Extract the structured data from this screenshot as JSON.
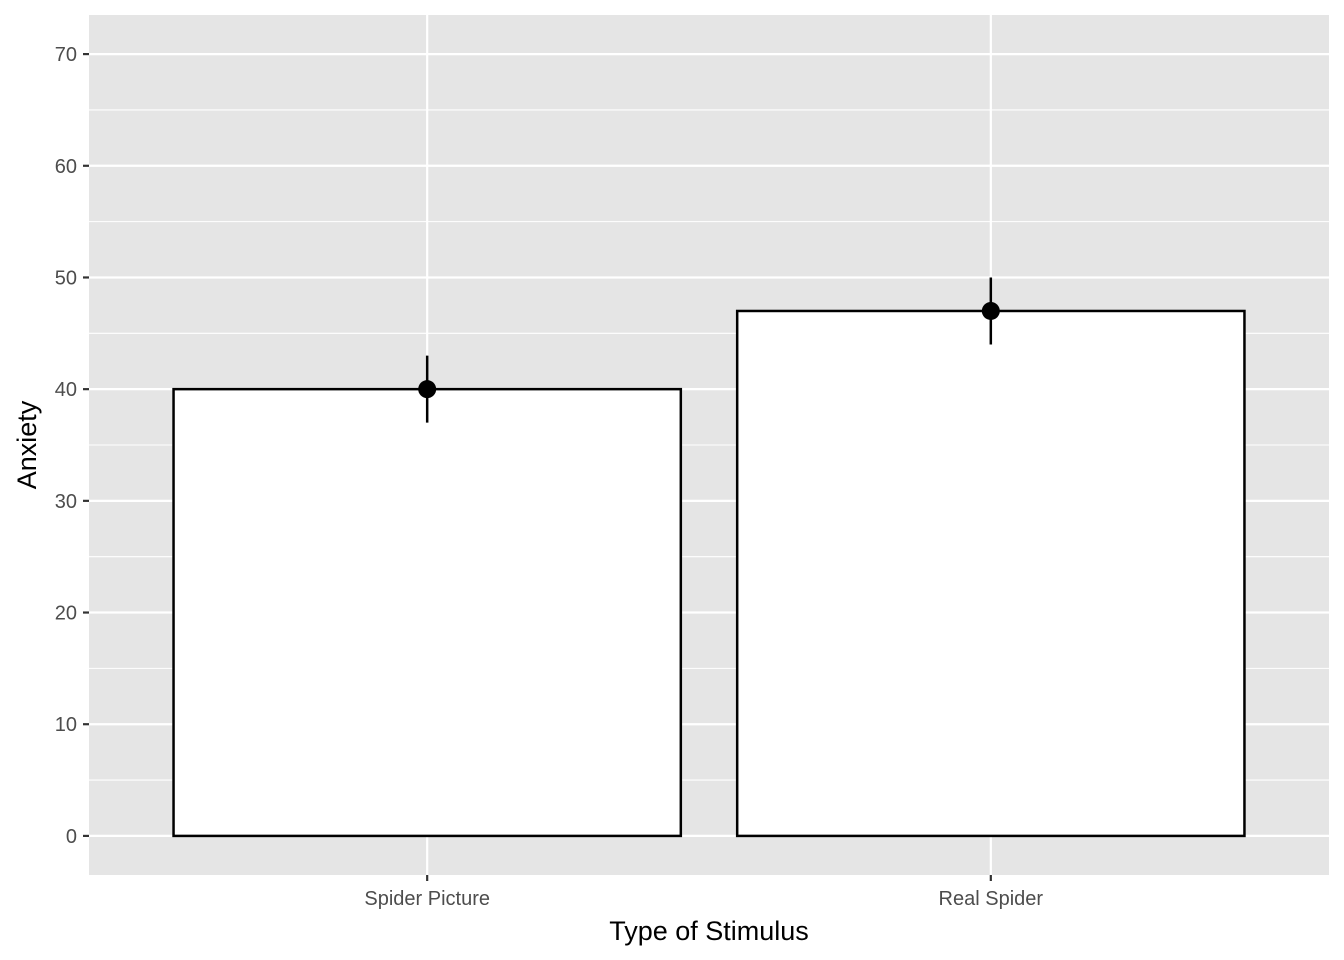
{
  "chart_data": {
    "type": "bar",
    "title": "",
    "xlabel": "Type of Stimulus",
    "ylabel": "Anxiety",
    "categories": [
      "Spider Picture",
      "Real Spider"
    ],
    "values": [
      40,
      47
    ],
    "error_bars": {
      "lower": [
        37,
        44
      ],
      "upper": [
        43,
        50
      ]
    },
    "ylim": [
      -3.5,
      73.5
    ],
    "yticks": [
      0,
      10,
      20,
      30,
      40,
      50,
      60,
      70
    ],
    "grid": true,
    "colors": {
      "panel_background": "#e5e5e5",
      "grid": "#ffffff",
      "bar_fill": "#ffffff",
      "bar_outline": "#000000",
      "point": "#000000",
      "tick_text": "#4d4d4d",
      "tick_mark": "#333333"
    }
  }
}
